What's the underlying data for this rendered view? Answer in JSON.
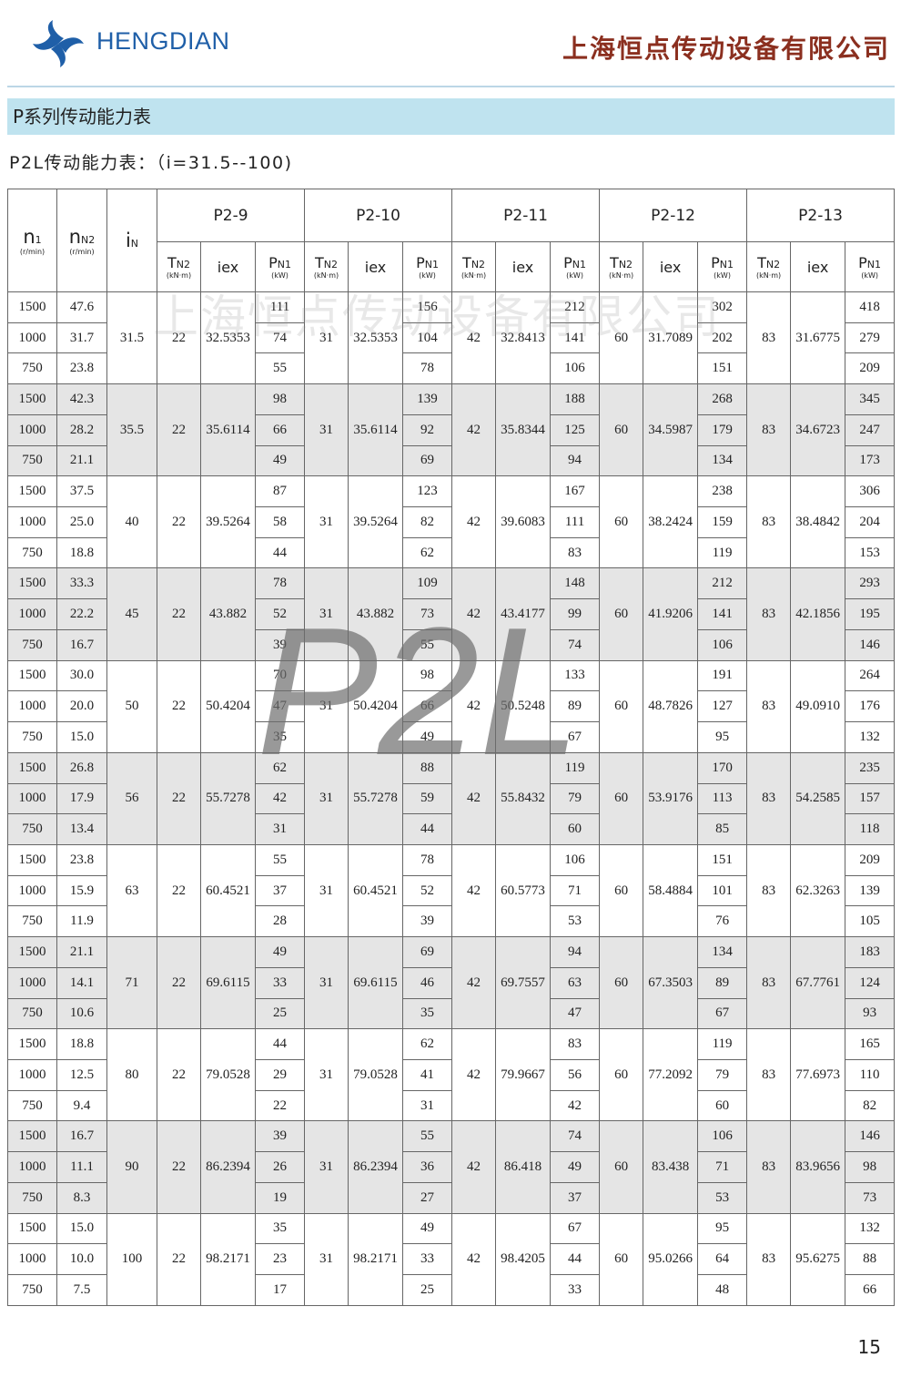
{
  "header": {
    "brand": "HENGDIAN",
    "company": "上海恒点传动设备有限公司"
  },
  "section_title": "P系列传动能力表",
  "subtitle": "P2L传动能力表：（i=31.5--100)",
  "watermark": "上海恒点传动设备有限公司",
  "overlay": "P2L",
  "table": {
    "columns": {
      "n1": {
        "symbol": "n",
        "sub": "1",
        "unit": "(r/min)"
      },
      "nN2": {
        "symbol": "n",
        "sub": "N2",
        "unit": "(r/min)"
      },
      "iN": {
        "symbol": "i",
        "sub": "N"
      },
      "tn2": {
        "symbol": "T",
        "sub": "N2",
        "unit": "(kN·m)"
      },
      "iex": "iex",
      "pn1": {
        "symbol": "P",
        "sub": "N1",
        "unit": "(kW)"
      }
    },
    "models": [
      "P2-9",
      "P2-10",
      "P2-11",
      "P2-12",
      "P2-13"
    ],
    "groups": [
      {
        "iN": "31.5",
        "n1": [
          "1500",
          "1000",
          "750"
        ],
        "nN2": [
          "47.6",
          "31.7",
          "23.8"
        ],
        "models": [
          {
            "tn2": "22",
            "iex": "32.5353",
            "pn1": [
              "111",
              "74",
              "55"
            ]
          },
          {
            "tn2": "31",
            "iex": "32.5353",
            "pn1": [
              "156",
              "104",
              "78"
            ]
          },
          {
            "tn2": "42",
            "iex": "32.8413",
            "pn1": [
              "212",
              "141",
              "106"
            ]
          },
          {
            "tn2": "60",
            "iex": "31.7089",
            "pn1": [
              "302",
              "202",
              "151"
            ]
          },
          {
            "tn2": "83",
            "iex": "31.6775",
            "pn1": [
              "418",
              "279",
              "209"
            ]
          }
        ]
      },
      {
        "iN": "35.5",
        "n1": [
          "1500",
          "1000",
          "750"
        ],
        "nN2": [
          "42.3",
          "28.2",
          "21.1"
        ],
        "models": [
          {
            "tn2": "22",
            "iex": "35.6114",
            "pn1": [
              "98",
              "66",
              "49"
            ]
          },
          {
            "tn2": "31",
            "iex": "35.6114",
            "pn1": [
              "139",
              "92",
              "69"
            ]
          },
          {
            "tn2": "42",
            "iex": "35.8344",
            "pn1": [
              "188",
              "125",
              "94"
            ]
          },
          {
            "tn2": "60",
            "iex": "34.5987",
            "pn1": [
              "268",
              "179",
              "134"
            ]
          },
          {
            "tn2": "83",
            "iex": "34.6723",
            "pn1": [
              "345",
              "247",
              "173"
            ]
          }
        ]
      },
      {
        "iN": "40",
        "n1": [
          "1500",
          "1000",
          "750"
        ],
        "nN2": [
          "37.5",
          "25.0",
          "18.8"
        ],
        "models": [
          {
            "tn2": "22",
            "iex": "39.5264",
            "pn1": [
              "87",
              "58",
              "44"
            ]
          },
          {
            "tn2": "31",
            "iex": "39.5264",
            "pn1": [
              "123",
              "82",
              "62"
            ]
          },
          {
            "tn2": "42",
            "iex": "39.6083",
            "pn1": [
              "167",
              "111",
              "83"
            ]
          },
          {
            "tn2": "60",
            "iex": "38.2424",
            "pn1": [
              "238",
              "159",
              "119"
            ]
          },
          {
            "tn2": "83",
            "iex": "38.4842",
            "pn1": [
              "306",
              "204",
              "153"
            ]
          }
        ]
      },
      {
        "iN": "45",
        "n1": [
          "1500",
          "1000",
          "750"
        ],
        "nN2": [
          "33.3",
          "22.2",
          "16.7"
        ],
        "models": [
          {
            "tn2": "22",
            "iex": "43.882",
            "pn1": [
              "78",
              "52",
              "39"
            ]
          },
          {
            "tn2": "31",
            "iex": "43.882",
            "pn1": [
              "109",
              "73",
              "55"
            ]
          },
          {
            "tn2": "42",
            "iex": "43.4177",
            "pn1": [
              "148",
              "99",
              "74"
            ]
          },
          {
            "tn2": "60",
            "iex": "41.9206",
            "pn1": [
              "212",
              "141",
              "106"
            ]
          },
          {
            "tn2": "83",
            "iex": "42.1856",
            "pn1": [
              "293",
              "195",
              "146"
            ]
          }
        ]
      },
      {
        "iN": "50",
        "n1": [
          "1500",
          "1000",
          "750"
        ],
        "nN2": [
          "30.0",
          "20.0",
          "15.0"
        ],
        "models": [
          {
            "tn2": "22",
            "iex": "50.4204",
            "pn1": [
              "70",
              "47",
              "35"
            ]
          },
          {
            "tn2": "31",
            "iex": "50.4204",
            "pn1": [
              "98",
              "66",
              "49"
            ]
          },
          {
            "tn2": "42",
            "iex": "50.5248",
            "pn1": [
              "133",
              "89",
              "67"
            ]
          },
          {
            "tn2": "60",
            "iex": "48.7826",
            "pn1": [
              "191",
              "127",
              "95"
            ]
          },
          {
            "tn2": "83",
            "iex": "49.0910",
            "pn1": [
              "264",
              "176",
              "132"
            ]
          }
        ]
      },
      {
        "iN": "56",
        "n1": [
          "1500",
          "1000",
          "750"
        ],
        "nN2": [
          "26.8",
          "17.9",
          "13.4"
        ],
        "models": [
          {
            "tn2": "22",
            "iex": "55.7278",
            "pn1": [
              "62",
              "42",
              "31"
            ]
          },
          {
            "tn2": "31",
            "iex": "55.7278",
            "pn1": [
              "88",
              "59",
              "44"
            ]
          },
          {
            "tn2": "42",
            "iex": "55.8432",
            "pn1": [
              "119",
              "79",
              "60"
            ]
          },
          {
            "tn2": "60",
            "iex": "53.9176",
            "pn1": [
              "170",
              "113",
              "85"
            ]
          },
          {
            "tn2": "83",
            "iex": "54.2585",
            "pn1": [
              "235",
              "157",
              "118"
            ]
          }
        ]
      },
      {
        "iN": "63",
        "n1": [
          "1500",
          "1000",
          "750"
        ],
        "nN2": [
          "23.8",
          "15.9",
          "11.9"
        ],
        "models": [
          {
            "tn2": "22",
            "iex": "60.4521",
            "pn1": [
              "55",
              "37",
              "28"
            ]
          },
          {
            "tn2": "31",
            "iex": "60.4521",
            "pn1": [
              "78",
              "52",
              "39"
            ]
          },
          {
            "tn2": "42",
            "iex": "60.5773",
            "pn1": [
              "106",
              "71",
              "53"
            ]
          },
          {
            "tn2": "60",
            "iex": "58.4884",
            "pn1": [
              "151",
              "101",
              "76"
            ]
          },
          {
            "tn2": "83",
            "iex": "62.3263",
            "pn1": [
              "209",
              "139",
              "105"
            ]
          }
        ]
      },
      {
        "iN": "71",
        "n1": [
          "1500",
          "1000",
          "750"
        ],
        "nN2": [
          "21.1",
          "14.1",
          "10.6"
        ],
        "models": [
          {
            "tn2": "22",
            "iex": "69.6115",
            "pn1": [
              "49",
              "33",
              "25"
            ]
          },
          {
            "tn2": "31",
            "iex": "69.6115",
            "pn1": [
              "69",
              "46",
              "35"
            ]
          },
          {
            "tn2": "42",
            "iex": "69.7557",
            "pn1": [
              "94",
              "63",
              "47"
            ]
          },
          {
            "tn2": "60",
            "iex": "67.3503",
            "pn1": [
              "134",
              "89",
              "67"
            ]
          },
          {
            "tn2": "83",
            "iex": "67.7761",
            "pn1": [
              "183",
              "124",
              "93"
            ]
          }
        ]
      },
      {
        "iN": "80",
        "n1": [
          "1500",
          "1000",
          "750"
        ],
        "nN2": [
          "18.8",
          "12.5",
          "9.4"
        ],
        "models": [
          {
            "tn2": "22",
            "iex": "79.0528",
            "pn1": [
              "44",
              "29",
              "22"
            ]
          },
          {
            "tn2": "31",
            "iex": "79.0528",
            "pn1": [
              "62",
              "41",
              "31"
            ]
          },
          {
            "tn2": "42",
            "iex": "79.9667",
            "pn1": [
              "83",
              "56",
              "42"
            ]
          },
          {
            "tn2": "60",
            "iex": "77.2092",
            "pn1": [
              "119",
              "79",
              "60"
            ]
          },
          {
            "tn2": "83",
            "iex": "77.6973",
            "pn1": [
              "165",
              "110",
              "82"
            ]
          }
        ]
      },
      {
        "iN": "90",
        "n1": [
          "1500",
          "1000",
          "750"
        ],
        "nN2": [
          "16.7",
          "11.1",
          "8.3"
        ],
        "models": [
          {
            "tn2": "22",
            "iex": "86.2394",
            "pn1": [
              "39",
              "26",
              "19"
            ]
          },
          {
            "tn2": "31",
            "iex": "86.2394",
            "pn1": [
              "55",
              "36",
              "27"
            ]
          },
          {
            "tn2": "42",
            "iex": "86.418",
            "pn1": [
              "74",
              "49",
              "37"
            ]
          },
          {
            "tn2": "60",
            "iex": "83.438",
            "pn1": [
              "106",
              "71",
              "53"
            ]
          },
          {
            "tn2": "83",
            "iex": "83.9656",
            "pn1": [
              "146",
              "98",
              "73"
            ]
          }
        ]
      },
      {
        "iN": "100",
        "n1": [
          "1500",
          "1000",
          "750"
        ],
        "nN2": [
          "15.0",
          "10.0",
          "7.5"
        ],
        "models": [
          {
            "tn2": "22",
            "iex": "98.2171",
            "pn1": [
              "35",
              "23",
              "17"
            ]
          },
          {
            "tn2": "31",
            "iex": "98.2171",
            "pn1": [
              "49",
              "33",
              "25"
            ]
          },
          {
            "tn2": "42",
            "iex": "98.4205",
            "pn1": [
              "67",
              "44",
              "33"
            ]
          },
          {
            "tn2": "60",
            "iex": "95.0266",
            "pn1": [
              "95",
              "64",
              "48"
            ]
          },
          {
            "tn2": "83",
            "iex": "95.6275",
            "pn1": [
              "132",
              "88",
              "66"
            ]
          }
        ]
      }
    ]
  },
  "page_number": "15"
}
